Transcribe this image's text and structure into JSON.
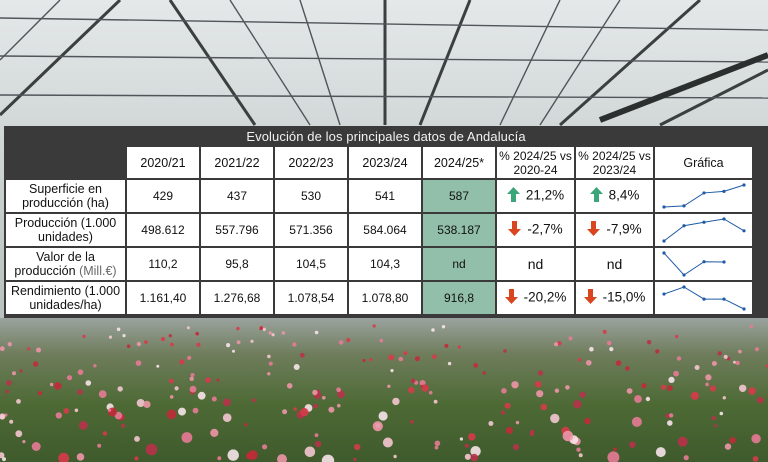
{
  "title": "Evolución de los principales datos de Andalucía",
  "columns": [
    "2020/21",
    "2021/22",
    "2022/23",
    "2023/24",
    "2024/25*",
    "% 2024/25 vs 2020-24",
    "% 2024/25 vs 2023/24",
    "Gráfica"
  ],
  "rows": [
    {
      "label": "Superficie en producción (ha)",
      "values": [
        "429",
        "437",
        "530",
        "541",
        "587"
      ],
      "pct_vs_avg": "21,2%",
      "pct_vs_avg_dir": "up",
      "pct_vs_prev": "8,4%",
      "pct_vs_prev_dir": "up",
      "spark": [
        429,
        437,
        530,
        541,
        587
      ]
    },
    {
      "label": "Producción (1.000 unidades)",
      "values": [
        "498.612",
        "557.796",
        "571.356",
        "584.064",
        "538.187"
      ],
      "pct_vs_avg": "-2,7%",
      "pct_vs_avg_dir": "down",
      "pct_vs_prev": "-7,9%",
      "pct_vs_prev_dir": "down",
      "spark": [
        498612,
        557796,
        571356,
        584064,
        538187
      ]
    },
    {
      "label_line1": "Valor de la",
      "label_line2": "producción",
      "label_line2_suffix": "(Mill.€)",
      "values": [
        "110,2",
        "95,8",
        "104,5",
        "104,3",
        "nd"
      ],
      "pct_vs_avg": "nd",
      "pct_vs_prev": "nd",
      "spark": [
        110.2,
        95.8,
        104.5,
        104.3
      ]
    },
    {
      "label": "Rendimiento (1.000 unidades/ha)",
      "values": [
        "1.161,40",
        "1.276,68",
        "1.078,54",
        "1.078,80",
        "916,8"
      ],
      "pct_vs_avg": "-20,2%",
      "pct_vs_avg_dir": "down",
      "pct_vs_prev": "-15,0%",
      "pct_vs_prev_dir": "down",
      "spark": [
        1161.4,
        1276.68,
        1078.54,
        1078.8,
        916.8
      ]
    }
  ],
  "colors": {
    "header_bg": "#3a3a3a",
    "highlight": "#91bfa9",
    "up": "#3aa67a",
    "down": "#d9451f",
    "spark": "#1e5aa6"
  }
}
